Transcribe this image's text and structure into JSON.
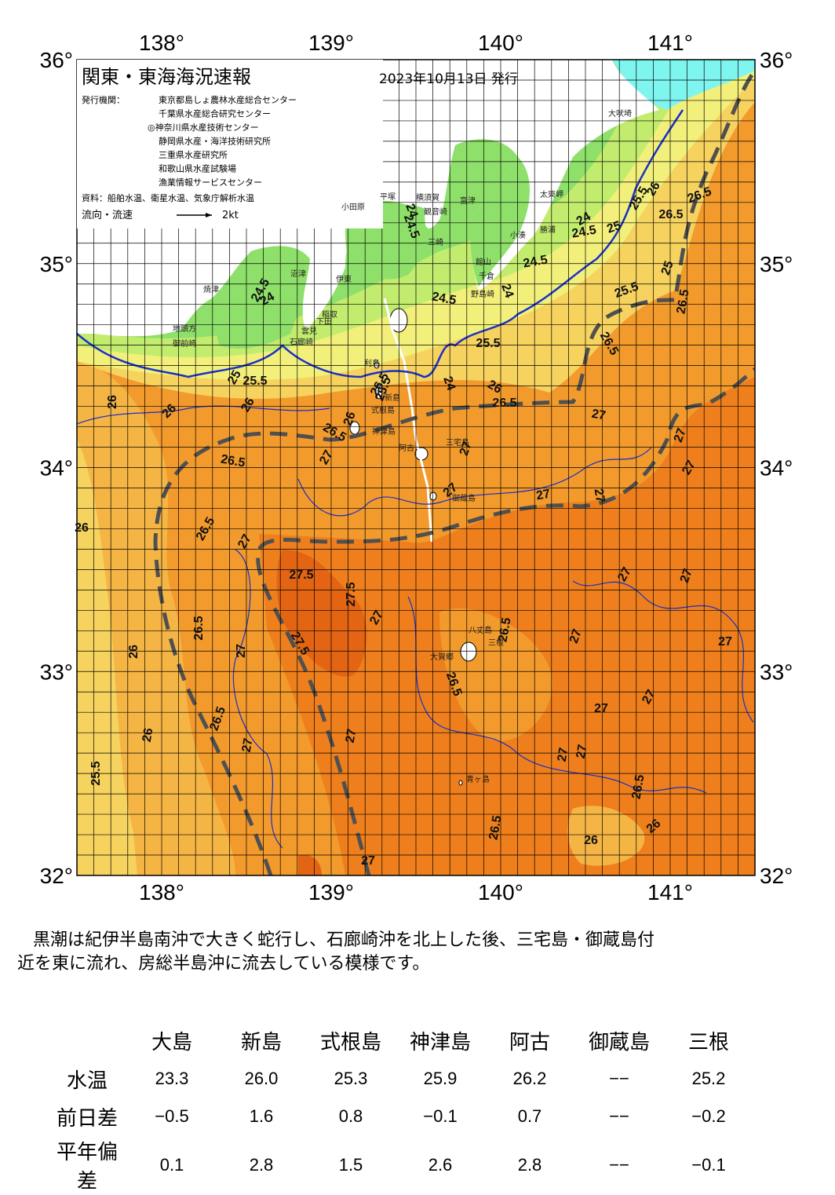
{
  "map": {
    "title": "関東・東海海況速報",
    "issue_date": "2023年10月13日 発行",
    "issuer_label": "発行機関：",
    "issuers": [
      "東京都島しょ農林水産総合センター",
      "千葉県水産総合研究センター",
      "◎神奈川県水産技術センター",
      "静岡県水産・海洋技術研究所",
      "三重県水産研究所",
      "和歌山県水産試験場",
      "漁業情報サービスセンター"
    ],
    "source": "資料：船舶水温、衛星水温、気象庁解析水温",
    "flow_label": "流向・流速",
    "flow_scale": "2kt",
    "lon_labels": [
      "138°",
      "139°",
      "140°",
      "141°"
    ],
    "lat_labels": [
      "36°",
      "35°",
      "34°",
      "33°",
      "32°"
    ],
    "place_names": [
      "大吠埼",
      "太東岬",
      "勝浦",
      "小湊",
      "館山",
      "千倉",
      "野島崎",
      "横須賀",
      "観音崎",
      "富津",
      "平塚",
      "小田原",
      "三崎",
      "伊東",
      "稲取",
      "下田",
      "石廊崎",
      "雲見",
      "沼津",
      "焼津",
      "御前崎",
      "地頭方",
      "利島",
      "新島",
      "式根島",
      "神津島",
      "阿古",
      "三宅島",
      "御蔵島",
      "八丈島",
      "大賀郷",
      "三根",
      "青ヶ島"
    ],
    "isotherm_labels": [
      "24",
      "24.5",
      "25",
      "25.5",
      "26",
      "26.5",
      "27",
      "27.5"
    ],
    "colors": {
      "t24": "#8ee06a",
      "t245": "#c2ec6e",
      "t25": "#f2f07a",
      "t255": "#f6d25e",
      "t26": "#f5b545",
      "t265": "#f29a2c",
      "t27": "#ee7f1c",
      "t275": "#e36413",
      "cold": "#7ff5f0",
      "kuroshio": "#505050",
      "isoline": "#1a2fc8"
    }
  },
  "description": {
    "line1": "黒潮は紀伊半島南沖で大きく蛇行し、石廊崎沖を北上した後、三宅島・御蔵島付",
    "line2": "近を東に流れ、房総半島沖に流去している模様です。"
  },
  "table": {
    "stations": [
      "大島",
      "新島",
      "式根島",
      "神津島",
      "阿古",
      "御蔵島",
      "三根"
    ],
    "rows": [
      {
        "label": "水温",
        "values": [
          "23.3",
          "26.0",
          "25.3",
          "25.9",
          "26.2",
          "−−",
          "25.2"
        ]
      },
      {
        "label": "前日差",
        "values": [
          "−0.5",
          "1.6",
          "0.8",
          "−0.1",
          "0.7",
          "−−",
          "−0.2"
        ]
      },
      {
        "label": "平年偏差",
        "values": [
          "0.1",
          "2.8",
          "1.5",
          "2.6",
          "2.8",
          "−−",
          "−0.1"
        ]
      }
    ]
  }
}
